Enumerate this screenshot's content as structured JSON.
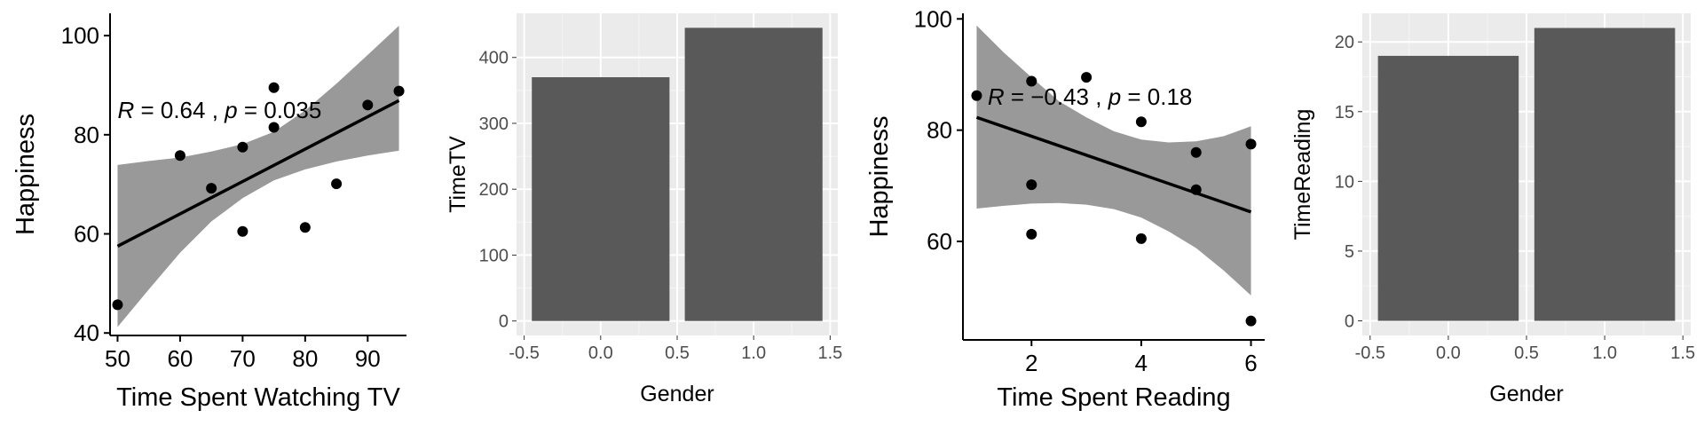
{
  "chart_data": [
    {
      "type": "scatter",
      "style": "classic",
      "xlabel": "Time Spent Watching TV",
      "ylabel": "Happiness",
      "xlim": [
        48.8,
        96.2
      ],
      "ylim": [
        39.5,
        104.5
      ],
      "xticks": [
        50,
        60,
        70,
        80,
        90
      ],
      "yticks": [
        40,
        60,
        80,
        100
      ],
      "points": [
        {
          "x": 50,
          "y": 45.7
        },
        {
          "x": 60,
          "y": 75.8
        },
        {
          "x": 65,
          "y": 69.2
        },
        {
          "x": 70,
          "y": 60.5
        },
        {
          "x": 70,
          "y": 77.5
        },
        {
          "x": 75,
          "y": 81.5
        },
        {
          "x": 75,
          "y": 89.5
        },
        {
          "x": 80,
          "y": 61.3
        },
        {
          "x": 85,
          "y": 70.1
        },
        {
          "x": 90,
          "y": 86.0
        },
        {
          "x": 95,
          "y": 88.8
        }
      ],
      "fit": {
        "x": [
          50,
          95
        ],
        "y": [
          57.5,
          86.9
        ]
      },
      "band": {
        "x": [
          50,
          55,
          60,
          65,
          70,
          75,
          80,
          85,
          90,
          95
        ],
        "lower": [
          41.2,
          48.8,
          56.2,
          62.5,
          67.2,
          70.8,
          73.0,
          74.6,
          75.8,
          76.8
        ],
        "upper": [
          73.9,
          74.7,
          75.4,
          76.6,
          78.1,
          80.6,
          84.9,
          90.3,
          96.1,
          102.0
        ]
      },
      "annotation": {
        "r_label": "R",
        "r_text": " = 0.64 , ",
        "p_label": "p",
        "p_text": " = 0.035",
        "x": 50,
        "y": 85
      }
    },
    {
      "type": "bar",
      "style": "gray",
      "xlabel": "Gender",
      "ylabel": "TimeTV",
      "xlim": [
        -0.55,
        1.55
      ],
      "ylim": [
        -22,
        467
      ],
      "xticks": [
        "-0.5",
        "0.0",
        "0.5",
        "1.0",
        "1.5"
      ],
      "yticks": [
        0,
        100,
        200,
        300,
        400
      ],
      "categories": [
        0,
        1
      ],
      "values": [
        370,
        445
      ],
      "bar_color": "#595959",
      "panel_bg": "#ebebeb"
    },
    {
      "type": "scatter",
      "style": "classic",
      "xlabel": "Time Spent Reading",
      "ylabel": "Happiness",
      "xlim": [
        0.75,
        6.25
      ],
      "ylim": [
        42.3,
        101
      ],
      "xticks": [
        2,
        4,
        6
      ],
      "yticks": [
        60,
        80,
        100
      ],
      "points": [
        {
          "x": 1,
          "y": 86.2
        },
        {
          "x": 2,
          "y": 88.8
        },
        {
          "x": 2,
          "y": 70.2
        },
        {
          "x": 2,
          "y": 61.3
        },
        {
          "x": 3,
          "y": 89.5
        },
        {
          "x": 4,
          "y": 81.5
        },
        {
          "x": 4,
          "y": 60.5
        },
        {
          "x": 5,
          "y": 76.0
        },
        {
          "x": 5,
          "y": 69.3
        },
        {
          "x": 6,
          "y": 77.5
        },
        {
          "x": 6,
          "y": 45.7
        }
      ],
      "fit": {
        "x": [
          1,
          6
        ],
        "y": [
          82.3,
          65.3
        ]
      },
      "band": {
        "x": [
          1,
          1.5,
          2,
          2.5,
          3,
          3.5,
          4,
          4.5,
          5,
          5.5,
          6
        ],
        "lower": [
          65.9,
          66.4,
          66.8,
          66.9,
          66.6,
          65.8,
          64.3,
          61.8,
          58.8,
          54.8,
          50.3
        ],
        "upper": [
          98.8,
          93.9,
          89.5,
          85.2,
          82.3,
          79.8,
          78.3,
          77.8,
          78.0,
          78.9,
          80.7
        ]
      },
      "annotation": {
        "r_label": "R",
        "r_text": " = −0.43 , ",
        "p_label": "p",
        "p_text": " = 0.18",
        "x": 1.2,
        "y": 86
      }
    },
    {
      "type": "bar",
      "style": "gray",
      "xlabel": "Gender",
      "ylabel": "TimeReading",
      "xlim": [
        -0.55,
        1.55
      ],
      "ylim": [
        -1.05,
        22.05
      ],
      "xticks": [
        "-0.5",
        "0.0",
        "0.5",
        "1.0",
        "1.5"
      ],
      "yticks": [
        0,
        5,
        10,
        15,
        20
      ],
      "categories": [
        0,
        1
      ],
      "values": [
        19,
        21
      ],
      "bar_color": "#595959",
      "panel_bg": "#ebebeb"
    }
  ]
}
